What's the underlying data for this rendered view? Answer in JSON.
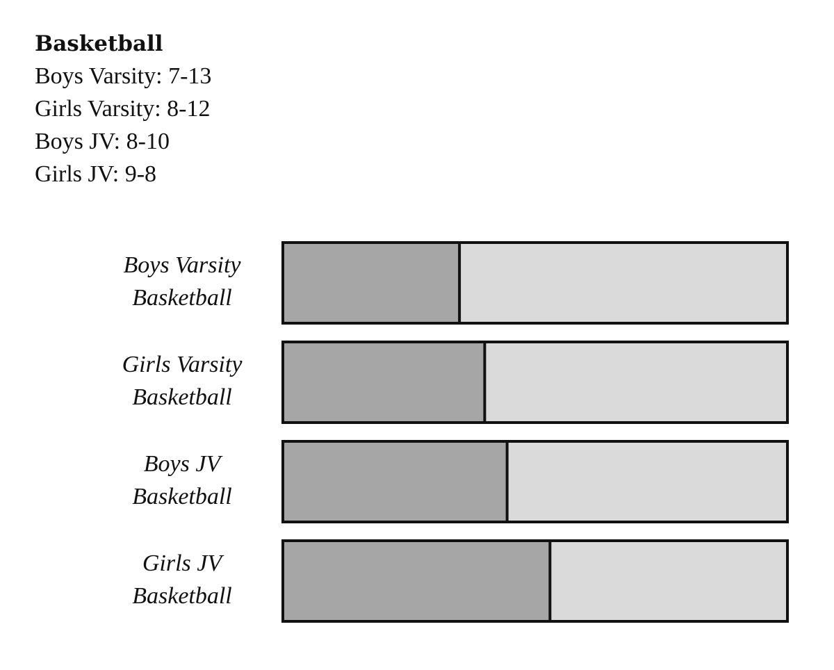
{
  "records": {
    "title": "Basketball",
    "lines": [
      "Boys Varsity: 7-13",
      "Girls Varsity: 8-12",
      "Boys JV: 8-10",
      "Girls JV: 9-8"
    ]
  },
  "chart_data": {
    "type": "bar",
    "stacked": true,
    "orientation": "horizontal",
    "categories": [
      [
        "Boys Varsity",
        "Basketball"
      ],
      [
        "Girls Varsity",
        "Basketball"
      ],
      [
        "Boys JV",
        "Basketball"
      ],
      [
        "Girls JV",
        "Basketball"
      ]
    ],
    "series": [
      {
        "values": [
          7,
          8,
          8,
          9
        ],
        "color": "#a6a6a6"
      },
      {
        "values": [
          13,
          12,
          10,
          8
        ],
        "color": "#dadada"
      }
    ],
    "xlim": [
      0,
      1
    ],
    "normalized": true,
    "border_color": "#111111",
    "grid": false,
    "legend": "none"
  }
}
